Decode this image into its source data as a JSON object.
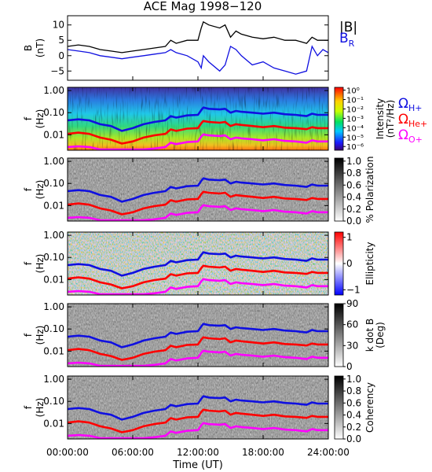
{
  "chart_data": {
    "type": "line",
    "title": "ACE Mag 1998−120",
    "xlabel": "Time (UT)",
    "x_ticks": [
      "00:00:00",
      "06:00:00",
      "12:00:00",
      "18:00:00",
      "24:00:00"
    ],
    "x_range_hours": [
      0,
      24
    ],
    "colors": {
      "B_total": "#000000",
      "B_R": "#1010e0",
      "H_plus": "#1010e0",
      "He_plus": "#ff0000",
      "O_plus": "#ff00ff",
      "panel_border": "#000000"
    },
    "field_panel": {
      "ylabel": "B",
      "yunit": "(nT)",
      "y_ticks": [
        "10",
        "5",
        "0",
        "−5"
      ],
      "ylim": [
        -8,
        13
      ],
      "legend": [
        {
          "label": "|B|",
          "sub": ""
        },
        {
          "label": "B",
          "sub": "R"
        }
      ],
      "series": [
        {
          "name": "|B|",
          "x": [
            0,
            1,
            2,
            3,
            4,
            5,
            6,
            7,
            8,
            9,
            9.5,
            10,
            11,
            12,
            12.3,
            12.5,
            13,
            14,
            14.5,
            15,
            15.5,
            16,
            17,
            18,
            19,
            20,
            21,
            22,
            22.5,
            23,
            23.5,
            24
          ],
          "values": [
            3,
            3.5,
            3,
            2,
            1.5,
            1,
            1.5,
            2,
            2.5,
            3,
            5,
            4,
            5,
            5,
            9,
            11,
            10,
            9,
            10,
            6,
            8,
            7,
            6,
            5.5,
            6,
            5,
            5,
            4,
            6,
            5,
            5,
            5
          ]
        },
        {
          "name": "B",
          "x": [
            0,
            1,
            2,
            3,
            4,
            5,
            6,
            7,
            8,
            9,
            9.5,
            10,
            11,
            12,
            12.3,
            12.5,
            13,
            14,
            14.5,
            15,
            15.5,
            16,
            17,
            18,
            19,
            20,
            21,
            22,
            22.5,
            23,
            23.5,
            24
          ],
          "values": [
            2,
            1.5,
            1,
            0,
            -0.5,
            -1,
            -0.5,
            0,
            0.5,
            1,
            2,
            1,
            0,
            -2,
            -4,
            0,
            -2,
            -5,
            -3,
            3,
            2,
            0,
            -3,
            -2,
            -4,
            -5,
            -6,
            -5,
            3,
            0,
            2,
            1
          ]
        }
      ]
    },
    "spectral_panels": [
      {
        "name": "Intensity",
        "ylabel": "f",
        "yunit": "(Hz)",
        "y_ticks": [
          "1.00",
          "0.10",
          "0.01"
        ],
        "scale": "log",
        "colorbar_label_lines": [
          "Intensity",
          "(nT²/Hz)"
        ],
        "colorbar_ticks": [
          "10⁰",
          "10⁻¹",
          "10⁻²",
          "10⁻³",
          "10⁻⁴",
          "10⁻⁵",
          "10⁻⁶"
        ],
        "colormap": "rainbow",
        "legend": [
          {
            "symbol": "Ω",
            "sub": "H+"
          },
          {
            "symbol": "Ω",
            "sub": "He+"
          },
          {
            "symbol": "Ω",
            "sub": "O+"
          }
        ]
      },
      {
        "name": "% Polarization",
        "ylabel": "f",
        "yunit": "(Hz)",
        "y_ticks": [
          "1.00",
          "0.10",
          "0.01"
        ],
        "scale": "log",
        "colorbar_label_lines": [
          "% Polarization"
        ],
        "colorbar_ticks": [
          "1.0",
          "0.8",
          "0.6",
          "0.4",
          "0.2",
          "0.0"
        ],
        "colormap": "gray"
      },
      {
        "name": "Ellipticity",
        "ylabel": "f",
        "yunit": "(Hz)",
        "y_ticks": [
          "1.00",
          "0.10",
          "0.01"
        ],
        "scale": "log",
        "colorbar_label_lines": [
          "Ellipticity"
        ],
        "colorbar_ticks": [
          "1",
          "0",
          "−1"
        ],
        "colormap": "blue-white-red"
      },
      {
        "name": "k dot B",
        "ylabel": "f",
        "yunit": "(Hz)",
        "y_ticks": [
          "1.00",
          "0.10",
          "0.01"
        ],
        "scale": "log",
        "colorbar_label_lines": [
          "k dot B",
          "(Deg)"
        ],
        "colorbar_ticks": [
          "90",
          "60",
          "30",
          "0"
        ],
        "colormap": "gray"
      },
      {
        "name": "Coherency",
        "ylabel": "f",
        "yunit": "(Hz)",
        "y_ticks": [
          "1.00",
          "0.10",
          "0.01"
        ],
        "scale": "log",
        "colorbar_label_lines": [
          "Coherency"
        ],
        "colorbar_ticks": [
          "1.0",
          "0.8",
          "0.6",
          "0.4",
          "0.2",
          "0.0"
        ],
        "colormap": "gray"
      }
    ],
    "gyrofrequency_series": [
      {
        "name": "ΩH+",
        "x": [
          0,
          1,
          2,
          3,
          4,
          5,
          6,
          7,
          8,
          9,
          9.5,
          10,
          11,
          12,
          12.3,
          12.5,
          13,
          14,
          14.5,
          15,
          15.5,
          16,
          17,
          18,
          19,
          20,
          21,
          22,
          22.5,
          23,
          23.5,
          24
        ],
        "values": [
          0.045,
          0.05,
          0.045,
          0.03,
          0.025,
          0.015,
          0.02,
          0.03,
          0.038,
          0.045,
          0.07,
          0.06,
          0.075,
          0.08,
          0.13,
          0.17,
          0.15,
          0.14,
          0.15,
          0.1,
          0.12,
          0.11,
          0.1,
          0.09,
          0.1,
          0.085,
          0.08,
          0.07,
          0.09,
          0.08,
          0.08,
          0.08
        ]
      },
      {
        "name": "ΩHe+",
        "x": [
          0,
          1,
          2,
          3,
          4,
          5,
          6,
          7,
          8,
          9,
          9.5,
          10,
          11,
          12,
          12.3,
          12.5,
          13,
          14,
          14.5,
          15,
          15.5,
          16,
          17,
          18,
          19,
          20,
          21,
          22,
          22.5,
          23,
          23.5,
          24
        ],
        "values": [
          0.011,
          0.0125,
          0.011,
          0.0075,
          0.006,
          0.004,
          0.005,
          0.0075,
          0.0095,
          0.011,
          0.0175,
          0.015,
          0.019,
          0.02,
          0.033,
          0.042,
          0.038,
          0.035,
          0.038,
          0.025,
          0.03,
          0.028,
          0.025,
          0.022,
          0.025,
          0.021,
          0.02,
          0.018,
          0.022,
          0.02,
          0.02,
          0.02
        ]
      },
      {
        "name": "ΩO+",
        "x": [
          0,
          1,
          2,
          3,
          4,
          5,
          6,
          7,
          8,
          9,
          9.5,
          10,
          11,
          12,
          12.3,
          12.5,
          13,
          14,
          14.5,
          15,
          15.5,
          16,
          17,
          18,
          19,
          20,
          21,
          22,
          22.5,
          23,
          23.5,
          24
        ],
        "values": [
          0.0028,
          0.003,
          0.0028,
          0.0019,
          0.0016,
          0.0012,
          0.0013,
          0.0019,
          0.0024,
          0.0028,
          0.0044,
          0.0038,
          0.0047,
          0.005,
          0.0083,
          0.0105,
          0.0094,
          0.0088,
          0.0094,
          0.0063,
          0.0075,
          0.0069,
          0.0063,
          0.0056,
          0.0063,
          0.0053,
          0.005,
          0.0044,
          0.0056,
          0.005,
          0.005,
          0.005
        ]
      }
    ]
  }
}
